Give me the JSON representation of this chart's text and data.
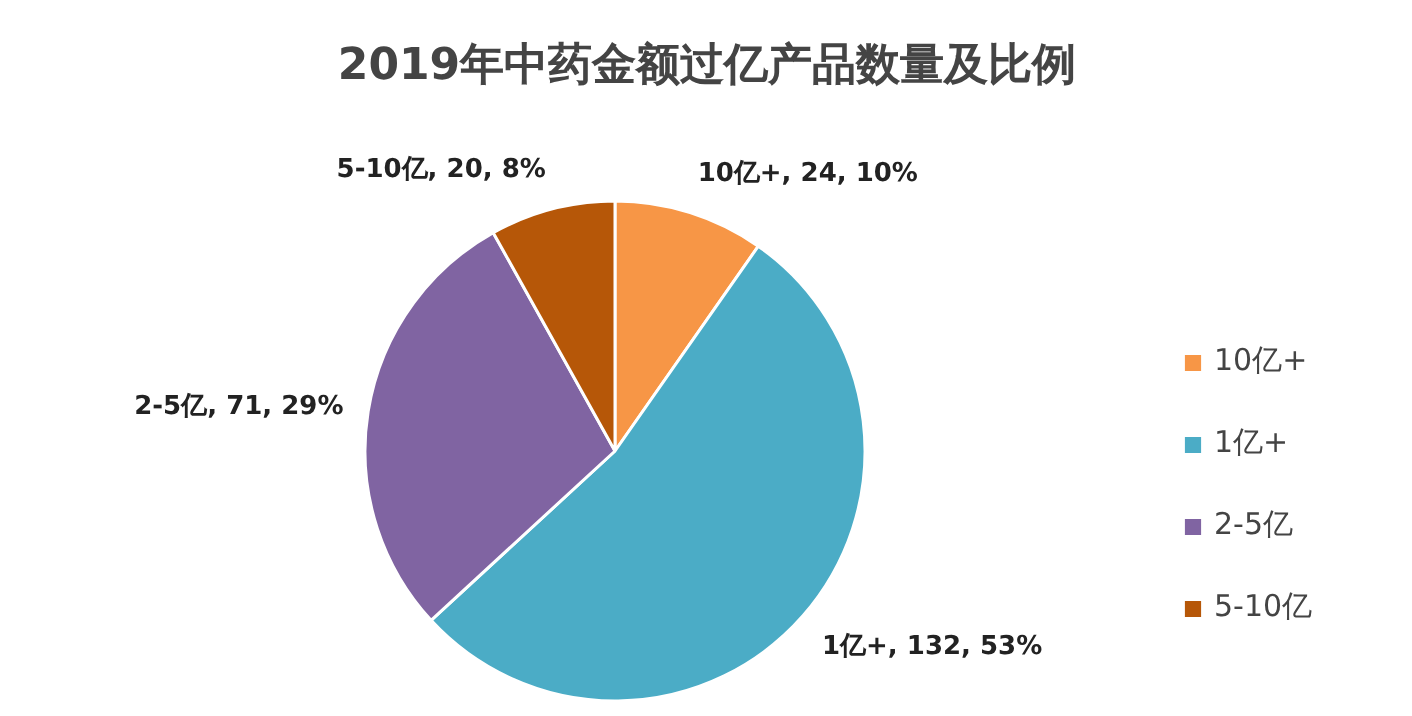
{
  "chart_data": {
    "type": "pie",
    "title": "2019年中药金额过亿产品数量及比例",
    "categories": [
      "10亿+",
      "1亿+",
      "2-5亿",
      "5-10亿"
    ],
    "values": [
      24,
      132,
      71,
      20
    ],
    "colors": [
      "#f79646",
      "#4bacc6",
      "#8064a2",
      "#b65708"
    ],
    "value_labels": [
      "10亿+, 24, 10%",
      "1亿+, 132, 53%",
      "2-5亿, 71, 29%",
      "5-10亿, 20, 8%"
    ],
    "legend": "right"
  }
}
